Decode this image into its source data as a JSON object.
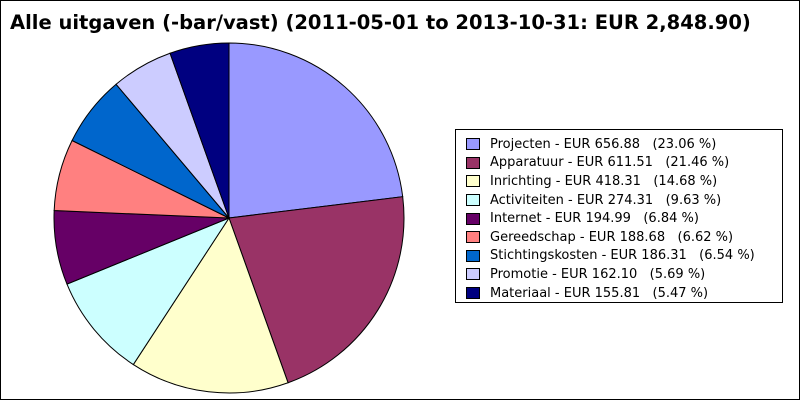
{
  "chart_data": {
    "type": "pie",
    "title": "Alle uitgaven (-bar/vast) (2011-05-01 to 2013-10-31: EUR 2,848.90)",
    "total": 2848.9,
    "currency": "EUR",
    "legend_position": "right",
    "slices": [
      {
        "label": "Projecten",
        "value": 656.88,
        "value_text": "656.88",
        "percent_text": "23.06 %",
        "color": "#9999ff",
        "legend": "Projecten - EUR 656.88   (23.06 %)"
      },
      {
        "label": "Apparatuur",
        "value": 611.51,
        "value_text": "611.51",
        "percent_text": "21.46 %",
        "color": "#993366",
        "legend": "Apparatuur - EUR 611.51   (21.46 %)"
      },
      {
        "label": "Inrichting",
        "value": 418.31,
        "value_text": "418.31",
        "percent_text": "14.68 %",
        "color": "#ffffcc",
        "legend": "Inrichting - EUR 418.31   (14.68 %)"
      },
      {
        "label": "Activiteiten",
        "value": 274.31,
        "value_text": "274.31",
        "percent_text": "9.63 %",
        "color": "#ccffff",
        "legend": "Activiteiten - EUR 274.31   (9.63 %)"
      },
      {
        "label": "Internet",
        "value": 194.99,
        "value_text": "194.99",
        "percent_text": "6.84 %",
        "color": "#660066",
        "legend": "Internet - EUR 194.99   (6.84 %)"
      },
      {
        "label": "Gereedschap",
        "value": 188.68,
        "value_text": "188.68",
        "percent_text": "6.62 %",
        "color": "#ff8080",
        "legend": "Gereedschap - EUR 188.68   (6.62 %)"
      },
      {
        "label": "Stichtingskosten",
        "value": 186.31,
        "value_text": "186.31",
        "percent_text": "6.54 %",
        "color": "#0066cc",
        "legend": "Stichtingskosten - EUR 186.31   (6.54 %)"
      },
      {
        "label": "Promotie",
        "value": 162.1,
        "value_text": "162.10",
        "percent_text": "5.69 %",
        "color": "#ccccff",
        "legend": "Promotie - EUR 162.10   (5.69 %)"
      },
      {
        "label": "Materiaal",
        "value": 155.81,
        "value_text": "155.81",
        "percent_text": "5.47 %",
        "color": "#000080",
        "legend": "Materiaal - EUR 155.81   (5.47 %)"
      }
    ]
  }
}
